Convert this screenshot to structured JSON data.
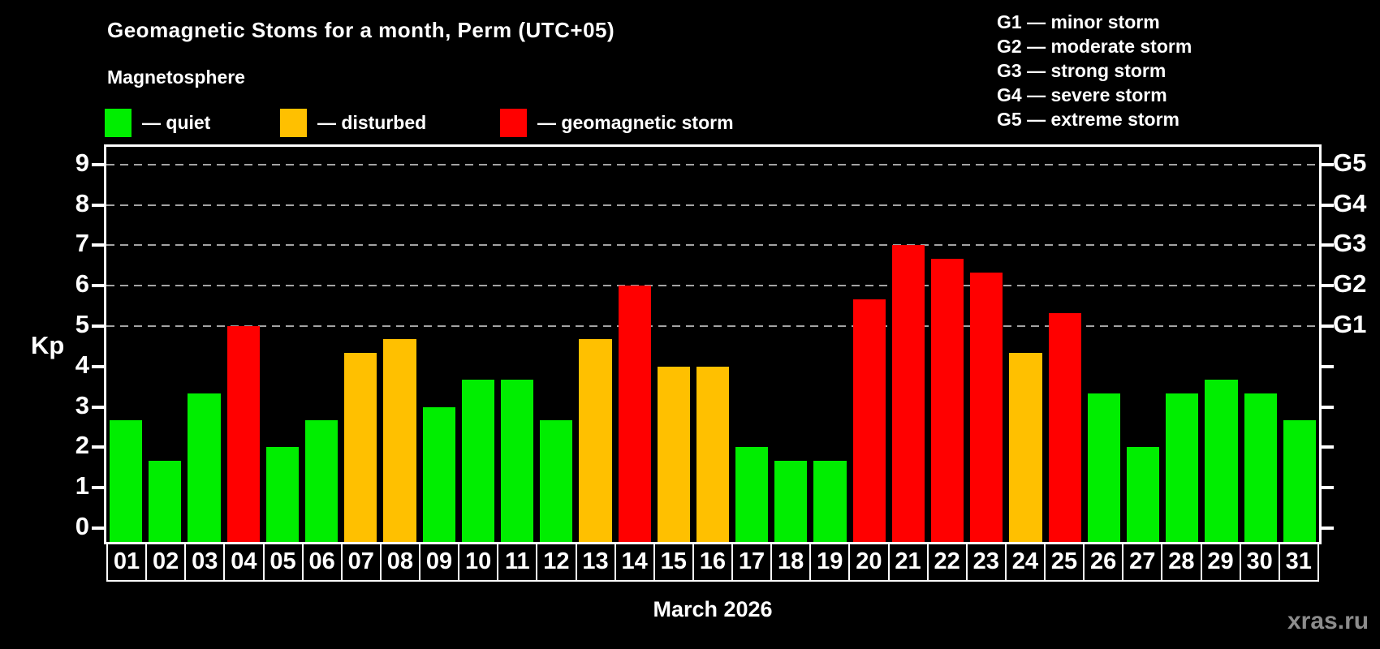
{
  "title": "Geomagnetic Stoms for a month, Perm (UTC+05)",
  "magnetosphere_label": "Magnetosphere",
  "legend": {
    "items": [
      {
        "label": "— quiet",
        "status": "quiet"
      },
      {
        "label": "— disturbed",
        "status": "disturbed"
      },
      {
        "label": "— geomagnetic storm",
        "status": "storm"
      }
    ]
  },
  "g_legend": {
    "lines": [
      "G1 — minor storm",
      "G2 — moderate storm",
      "G3 — strong storm",
      "G4 — severe storm",
      "G5 — extreme storm"
    ]
  },
  "watermark": "xras.ru",
  "chart_data": {
    "type": "bar",
    "title": "Geomagnetic Stoms for a month, Perm (UTC+05)",
    "xlabel": "March 2026",
    "ylabel": "Kp",
    "ylim": [
      0,
      9
    ],
    "yticks": [
      0,
      1,
      2,
      3,
      4,
      5,
      6,
      7,
      8,
      9
    ],
    "grid": "dashed horizontal lines at Kp 5-9 only (G1-G5 levels)",
    "legend_position": "top-left",
    "right_axis_labels": [
      {
        "kp": 5,
        "label": "G1"
      },
      {
        "kp": 6,
        "label": "G2"
      },
      {
        "kp": 7,
        "label": "G3"
      },
      {
        "kp": 8,
        "label": "G4"
      },
      {
        "kp": 9,
        "label": "G5"
      }
    ],
    "status_colors": {
      "quiet": "#00ee00",
      "disturbed": "#ffc000",
      "storm": "#ff0000"
    },
    "categories": [
      "01",
      "02",
      "03",
      "04",
      "05",
      "06",
      "07",
      "08",
      "09",
      "10",
      "11",
      "12",
      "13",
      "14",
      "15",
      "16",
      "17",
      "18",
      "19",
      "20",
      "21",
      "22",
      "23",
      "24",
      "25",
      "26",
      "27",
      "28",
      "29",
      "30",
      "31"
    ],
    "values": [
      2.67,
      1.67,
      3.33,
      5.0,
      2.0,
      2.67,
      4.33,
      4.67,
      3.0,
      3.67,
      3.67,
      2.67,
      4.67,
      6.0,
      4.0,
      4.0,
      2.0,
      1.67,
      1.67,
      5.67,
      7.0,
      6.67,
      6.33,
      4.33,
      5.33,
      3.33,
      2.0,
      3.33,
      3.67,
      3.33,
      2.67
    ],
    "statuses": [
      "quiet",
      "quiet",
      "quiet",
      "storm",
      "quiet",
      "quiet",
      "disturbed",
      "disturbed",
      "quiet",
      "quiet",
      "quiet",
      "quiet",
      "disturbed",
      "storm",
      "disturbed",
      "disturbed",
      "quiet",
      "quiet",
      "quiet",
      "storm",
      "storm",
      "storm",
      "storm",
      "disturbed",
      "storm",
      "quiet",
      "quiet",
      "quiet",
      "quiet",
      "quiet",
      "quiet"
    ]
  }
}
